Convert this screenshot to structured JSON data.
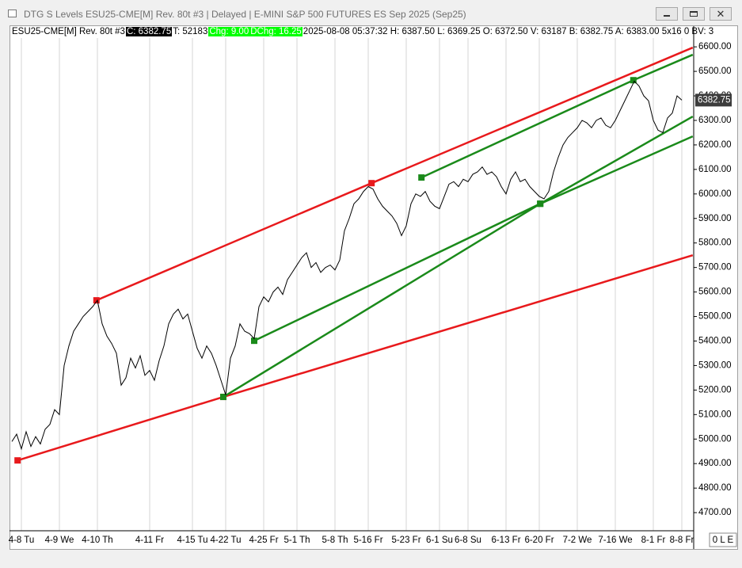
{
  "window_title": "DTG S Levels ESU25-CME[M]  Rev. 80t #3 | Delayed | E-MINI S&P 500 FUTURES ES Sep 2025 (Sep25)",
  "info_bar": [
    {
      "text": "ESU25-CME[M]  Rev. 80t #3",
      "background": "#ffffff",
      "color": "#000000"
    },
    {
      "text": "C: 6382.75",
      "background": "#000000",
      "color": "#ffffff"
    },
    {
      "text": "T: 52183",
      "background": "#ffffff",
      "color": "#000000"
    },
    {
      "text": "Chg: 9.00",
      "background": "#00ff00",
      "color": "#ffffff"
    },
    {
      "text": "DChg: 16.25",
      "background": "#00ff00",
      "color": "#ffffff"
    },
    {
      "text": "2025-08-08 05:37:32 H: 6387.50 L: 6369.25 O: 6372.50 V: 63187 B: 6382.75 A: 6383.00 5x16 0 BV: 3",
      "background": "#ffffff",
      "color": "#000000"
    }
  ],
  "status": "0 L E",
  "chart_data": {
    "type": "line",
    "categories": [
      null,
      null,
      "4-8 Tu",
      null,
      null,
      null,
      null,
      null,
      null,
      null,
      "4-9 We",
      null,
      null,
      null,
      null,
      null,
      null,
      null,
      "4-10 Th",
      null,
      null,
      null,
      null,
      null,
      null,
      null,
      null,
      null,
      null,
      "4-11 Fr",
      null,
      null,
      null,
      null,
      null,
      null,
      null,
      null,
      "4-15 Tu",
      null,
      null,
      null,
      null,
      null,
      null,
      "4-22 Tu",
      null,
      null,
      null,
      null,
      null,
      null,
      null,
      "4-25 Fr",
      null,
      null,
      null,
      null,
      null,
      null,
      "5-1 Th",
      null,
      null,
      null,
      null,
      null,
      null,
      null,
      "5-8 Th",
      null,
      null,
      null,
      null,
      null,
      null,
      "5-16 Fr",
      null,
      null,
      null,
      null,
      null,
      null,
      null,
      "5-23 Fr",
      null,
      null,
      null,
      null,
      null,
      null,
      "6-1 Su",
      null,
      null,
      null,
      null,
      null,
      "6-8 Su",
      null,
      null,
      null,
      null,
      null,
      null,
      null,
      "6-13 Fr",
      null,
      null,
      null,
      null,
      null,
      null,
      "6-20 Fr",
      null,
      null,
      null,
      null,
      null,
      null,
      null,
      "7-2 We",
      null,
      null,
      null,
      null,
      null,
      null,
      null,
      "7-16 We",
      null,
      null,
      null,
      null,
      null,
      null,
      null,
      "8-1 Fr",
      null,
      null,
      null,
      null,
      null,
      "8-8 Fr"
    ],
    "series": [
      {
        "color": "#000000",
        "values": [
          4990,
          5020,
          4960,
          5030,
          4970,
          5010,
          4980,
          5040,
          5060,
          5120,
          5100,
          5300,
          5380,
          5440,
          5470,
          5500,
          5520,
          5540,
          5566,
          5470,
          5420,
          5390,
          5350,
          5220,
          5250,
          5330,
          5290,
          5340,
          5260,
          5280,
          5240,
          5320,
          5380,
          5470,
          5510,
          5530,
          5490,
          5510,
          5440,
          5370,
          5330,
          5380,
          5350,
          5300,
          5240,
          5180,
          5330,
          5380,
          5470,
          5440,
          5430,
          5410,
          5540,
          5580,
          5560,
          5600,
          5620,
          5590,
          5650,
          5680,
          5710,
          5740,
          5760,
          5700,
          5720,
          5680,
          5700,
          5710,
          5690,
          5730,
          5850,
          5900,
          5960,
          5980,
          6010,
          6030,
          6020,
          5980,
          5950,
          5930,
          5910,
          5880,
          5830,
          5870,
          5960,
          6000,
          5990,
          6010,
          5970,
          5950,
          5940,
          5990,
          6040,
          6050,
          6030,
          6060,
          6050,
          6080,
          6090,
          6110,
          6080,
          6090,
          6070,
          6030,
          6000,
          6060,
          6090,
          6050,
          6060,
          6030,
          6010,
          5990,
          5980,
          6010,
          6090,
          6150,
          6200,
          6230,
          6250,
          6270,
          6300,
          6290,
          6270,
          6300,
          6310,
          6280,
          6270,
          6300,
          6340,
          6380,
          6420,
          6460,
          6440,
          6400,
          6380,
          6300,
          6260,
          6250,
          6310,
          6330,
          6400,
          6382.75
        ]
      }
    ],
    "trendlines": [
      {
        "color": "#e8191c",
        "x": [
          17.8,
          75.7,
          143.3
        ],
        "y": [
          5566,
          6044,
          6597
        ]
      },
      {
        "color": "#e8191c",
        "x": [
          1.2,
          44.5,
          143.3
        ],
        "y": [
          4913,
          5172,
          5750
        ]
      },
      {
        "color": "#1a8a1a",
        "x": [
          86.2,
          130.8,
          143.3
        ],
        "y": [
          6067,
          6464,
          6568
        ]
      },
      {
        "color": "#1a8a1a",
        "x": [
          44.5,
          111.2,
          143.3
        ],
        "y": [
          5172,
          5960,
          6316
        ]
      },
      {
        "color": "#1a8a1a",
        "x": [
          51,
          111.2,
          143.3
        ],
        "y": [
          5401,
          5960,
          6235
        ]
      }
    ],
    "last_price": {
      "value": 6382.75,
      "label": "6382.75"
    },
    "ylim": [
      4626,
      6636
    ],
    "yticks": [
      {
        "value": 4700,
        "label": "4700.00"
      },
      {
        "value": 4800,
        "label": "4800.00"
      },
      {
        "value": 4900,
        "label": "4900.00"
      },
      {
        "value": 5000,
        "label": "5000.00"
      },
      {
        "value": 5100,
        "label": "5100.00"
      },
      {
        "value": 5200,
        "label": "5200.00"
      },
      {
        "value": 5300,
        "label": "5300.00"
      },
      {
        "value": 5400,
        "label": "5400.00"
      },
      {
        "value": 5500,
        "label": "5500.00"
      },
      {
        "value": 5600,
        "label": "5600.00"
      },
      {
        "value": 5700,
        "label": "5700.00"
      },
      {
        "value": 5800,
        "label": "5800.00"
      },
      {
        "value": 5900,
        "label": "5900.00"
      },
      {
        "value": 6000,
        "label": "6000.00"
      },
      {
        "value": 6100,
        "label": "6100.00"
      },
      {
        "value": 6200,
        "label": "6200.00"
      },
      {
        "value": 6300,
        "label": "6300.00"
      },
      {
        "value": 6400,
        "label": "6400.00"
      },
      {
        "value": 6500,
        "label": "6500.00"
      },
      {
        "value": 6600,
        "label": "6600.00"
      }
    ],
    "grid": "x"
  }
}
